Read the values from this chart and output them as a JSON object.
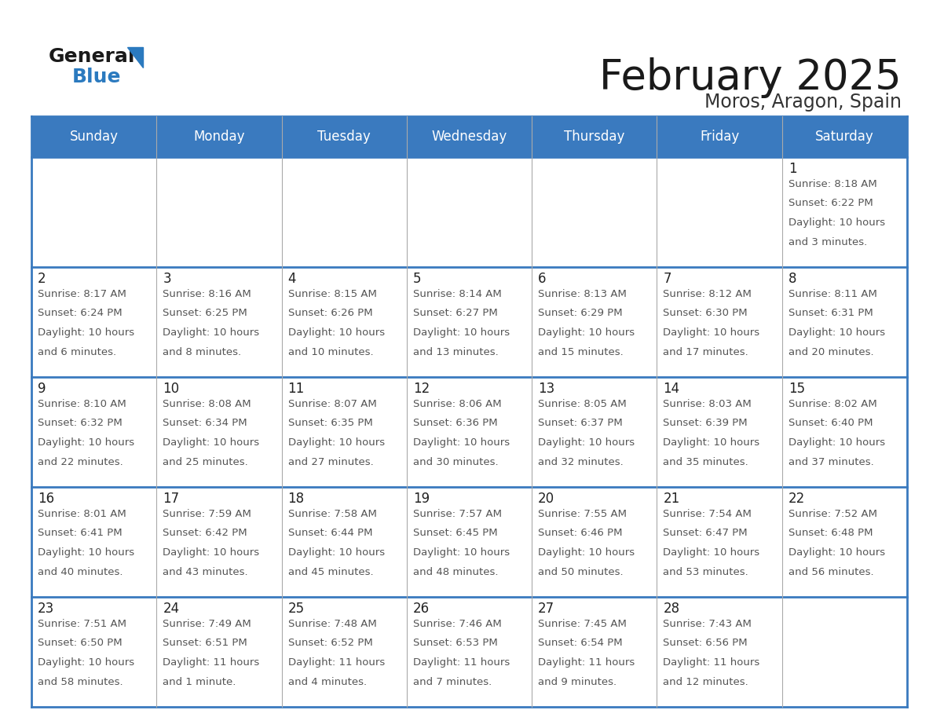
{
  "title": "February 2025",
  "subtitle": "Moros, Aragon, Spain",
  "header_bg_color": "#3a7abf",
  "header_text_color": "#ffffff",
  "cell_bg_color": "#ffffff",
  "alt_cell_bg_color": "#f0f4f8",
  "day_number_color": "#333333",
  "day_info_color": "#555555",
  "border_color": "#3a7abf",
  "grid_line_color": "#aaaaaa",
  "days_of_week": [
    "Sunday",
    "Monday",
    "Tuesday",
    "Wednesday",
    "Thursday",
    "Friday",
    "Saturday"
  ],
  "calendar_data": [
    [
      null,
      null,
      null,
      null,
      null,
      null,
      {
        "day": 1,
        "sunrise": "8:18 AM",
        "sunset": "6:22 PM",
        "daylight": "10 hours and 3 minutes."
      }
    ],
    [
      {
        "day": 2,
        "sunrise": "8:17 AM",
        "sunset": "6:24 PM",
        "daylight": "10 hours and 6 minutes."
      },
      {
        "day": 3,
        "sunrise": "8:16 AM",
        "sunset": "6:25 PM",
        "daylight": "10 hours and 8 minutes."
      },
      {
        "day": 4,
        "sunrise": "8:15 AM",
        "sunset": "6:26 PM",
        "daylight": "10 hours and 10 minutes."
      },
      {
        "day": 5,
        "sunrise": "8:14 AM",
        "sunset": "6:27 PM",
        "daylight": "10 hours and 13 minutes."
      },
      {
        "day": 6,
        "sunrise": "8:13 AM",
        "sunset": "6:29 PM",
        "daylight": "10 hours and 15 minutes."
      },
      {
        "day": 7,
        "sunrise": "8:12 AM",
        "sunset": "6:30 PM",
        "daylight": "10 hours and 17 minutes."
      },
      {
        "day": 8,
        "sunrise": "8:11 AM",
        "sunset": "6:31 PM",
        "daylight": "10 hours and 20 minutes."
      }
    ],
    [
      {
        "day": 9,
        "sunrise": "8:10 AM",
        "sunset": "6:32 PM",
        "daylight": "10 hours and 22 minutes."
      },
      {
        "day": 10,
        "sunrise": "8:08 AM",
        "sunset": "6:34 PM",
        "daylight": "10 hours and 25 minutes."
      },
      {
        "day": 11,
        "sunrise": "8:07 AM",
        "sunset": "6:35 PM",
        "daylight": "10 hours and 27 minutes."
      },
      {
        "day": 12,
        "sunrise": "8:06 AM",
        "sunset": "6:36 PM",
        "daylight": "10 hours and 30 minutes."
      },
      {
        "day": 13,
        "sunrise": "8:05 AM",
        "sunset": "6:37 PM",
        "daylight": "10 hours and 32 minutes."
      },
      {
        "day": 14,
        "sunrise": "8:03 AM",
        "sunset": "6:39 PM",
        "daylight": "10 hours and 35 minutes."
      },
      {
        "day": 15,
        "sunrise": "8:02 AM",
        "sunset": "6:40 PM",
        "daylight": "10 hours and 37 minutes."
      }
    ],
    [
      {
        "day": 16,
        "sunrise": "8:01 AM",
        "sunset": "6:41 PM",
        "daylight": "10 hours and 40 minutes."
      },
      {
        "day": 17,
        "sunrise": "7:59 AM",
        "sunset": "6:42 PM",
        "daylight": "10 hours and 43 minutes."
      },
      {
        "day": 18,
        "sunrise": "7:58 AM",
        "sunset": "6:44 PM",
        "daylight": "10 hours and 45 minutes."
      },
      {
        "day": 19,
        "sunrise": "7:57 AM",
        "sunset": "6:45 PM",
        "daylight": "10 hours and 48 minutes."
      },
      {
        "day": 20,
        "sunrise": "7:55 AM",
        "sunset": "6:46 PM",
        "daylight": "10 hours and 50 minutes."
      },
      {
        "day": 21,
        "sunrise": "7:54 AM",
        "sunset": "6:47 PM",
        "daylight": "10 hours and 53 minutes."
      },
      {
        "day": 22,
        "sunrise": "7:52 AM",
        "sunset": "6:48 PM",
        "daylight": "10 hours and 56 minutes."
      }
    ],
    [
      {
        "day": 23,
        "sunrise": "7:51 AM",
        "sunset": "6:50 PM",
        "daylight": "10 hours and 58 minutes."
      },
      {
        "day": 24,
        "sunrise": "7:49 AM",
        "sunset": "6:51 PM",
        "daylight": "11 hours and 1 minute."
      },
      {
        "day": 25,
        "sunrise": "7:48 AM",
        "sunset": "6:52 PM",
        "daylight": "11 hours and 4 minutes."
      },
      {
        "day": 26,
        "sunrise": "7:46 AM",
        "sunset": "6:53 PM",
        "daylight": "11 hours and 7 minutes."
      },
      {
        "day": 27,
        "sunrise": "7:45 AM",
        "sunset": "6:54 PM",
        "daylight": "11 hours and 9 minutes."
      },
      {
        "day": 28,
        "sunrise": "7:43 AM",
        "sunset": "6:56 PM",
        "daylight": "11 hours and 12 minutes."
      },
      null
    ]
  ]
}
